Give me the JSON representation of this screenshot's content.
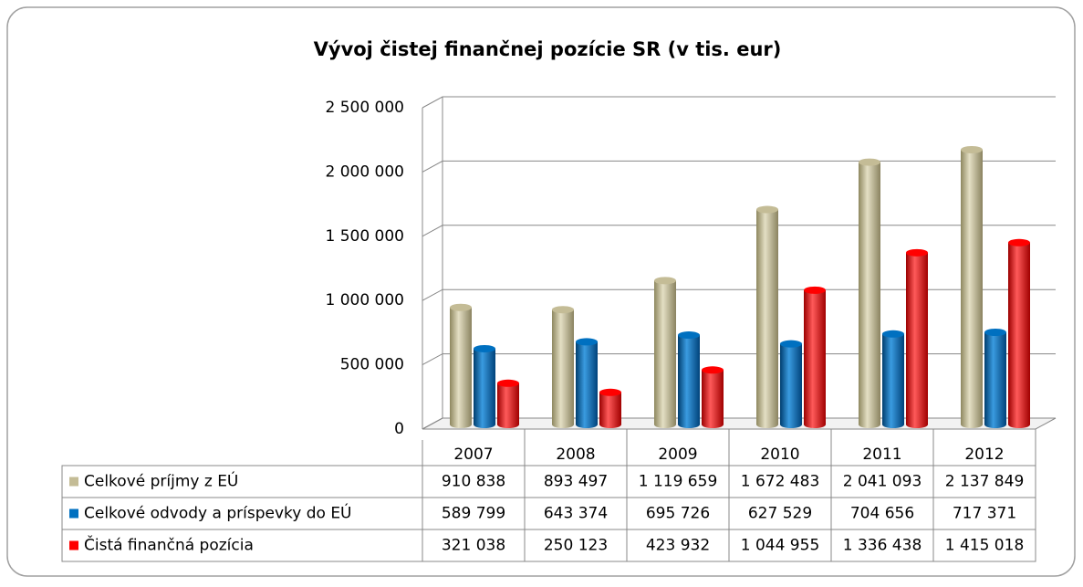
{
  "chart_data": {
    "type": "bar",
    "title": "Vývoj čistej finančnej pozície SR (v tis. eur)",
    "categories": [
      "2007",
      "2008",
      "2009",
      "2010",
      "2011",
      "2012"
    ],
    "series": [
      {
        "name": "Celkové príjmy z EÚ",
        "color": "#c4bc96",
        "values": [
          910838,
          893497,
          1119659,
          1672483,
          2041093,
          2137849
        ],
        "value_labels": [
          "910 838",
          "893 497",
          "1 119 659",
          "1 672 483",
          "2 041 093",
          "2 137 849"
        ]
      },
      {
        "name": "Celkové odvody a príspevky do EÚ",
        "color": "#0070c0",
        "values": [
          589799,
          643374,
          695726,
          627529,
          704656,
          717371
        ],
        "value_labels": [
          "589 799",
          "643 374",
          "695 726",
          "627 529",
          "704 656",
          "717 371"
        ]
      },
      {
        "name": "Čistá finančná pozícia",
        "color": "#ff0000",
        "values": [
          321038,
          250123,
          423932,
          1044955,
          1336438,
          1415018
        ],
        "value_labels": [
          "321 038",
          "250 123",
          "423 932",
          "1 044 955",
          "1 336 438",
          "1 415 018"
        ]
      }
    ],
    "ylim": [
      0,
      2500000
    ],
    "yticks": [
      0,
      {
        "value": 500000,
        "label": "500 000"
      },
      {
        "value": 1000000,
        "label": "1 000 000"
      },
      {
        "value": 1500000,
        "label": "1 500 000"
      },
      {
        "value": 2000000,
        "label": "2 000 000"
      },
      {
        "value": 2500000,
        "label": "2 500 000"
      }
    ],
    "grid": true
  }
}
